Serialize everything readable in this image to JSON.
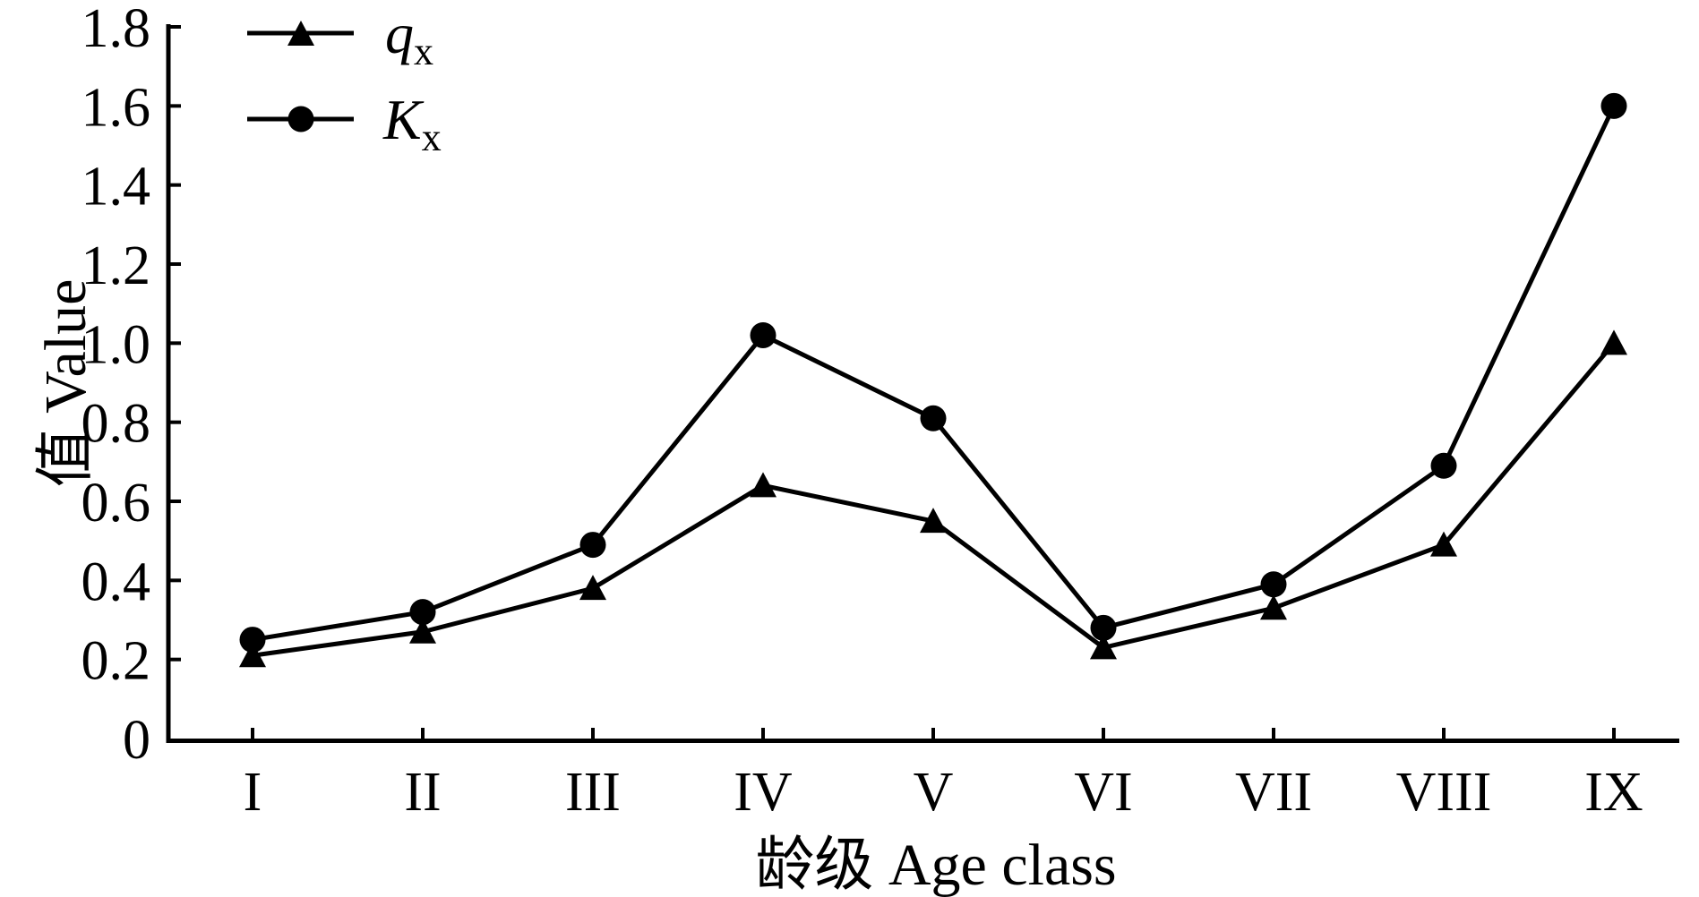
{
  "chart_data": {
    "type": "line",
    "title": "",
    "xlabel": "龄级 Age class",
    "ylabel": "值 Value",
    "categories": [
      "I",
      "II",
      "III",
      "IV",
      "V",
      "VI",
      "VII",
      "VIII",
      "IX"
    ],
    "series": [
      {
        "name": "q_x",
        "label_main": "q",
        "label_sub": "x",
        "marker": "triangle",
        "color": "#000000",
        "values": [
          0.21,
          0.27,
          0.38,
          0.64,
          0.55,
          0.23,
          0.33,
          0.49,
          1.0
        ]
      },
      {
        "name": "K_x",
        "label_main": "K",
        "label_sub": "x",
        "marker": "circle",
        "color": "#000000",
        "values": [
          0.25,
          0.32,
          0.49,
          1.02,
          0.81,
          0.28,
          0.39,
          0.69,
          1.6
        ]
      }
    ],
    "ylim": [
      0,
      1.8
    ],
    "yticks": [
      "0",
      "0.2",
      "0.4",
      "0.6",
      "0.8",
      "1.0",
      "1.2",
      "1.4",
      "1.6",
      "1.8"
    ],
    "grid": false,
    "legend_position": "top-left",
    "background": "#ffffff",
    "line_color": "#000000"
  }
}
